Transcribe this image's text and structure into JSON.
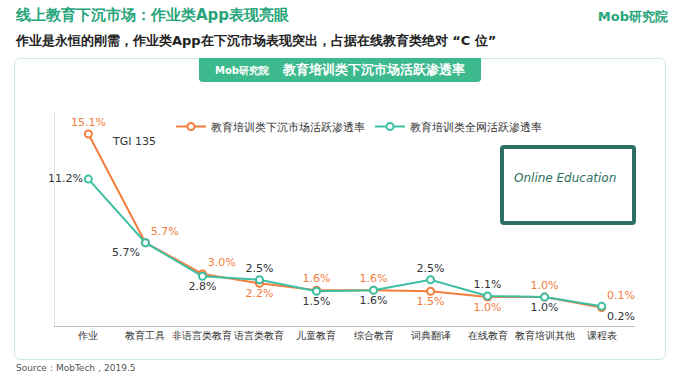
{
  "header": {
    "title": "线上教育下沉市场：作业类App表现亮眼",
    "subtitle": "作业是永恒的刚需，作业类App在下沉市场表现突出，占据在线教育类绝对 “C 位”",
    "logo": "Mob研究院"
  },
  "chart_data": {
    "type": "line",
    "title": "教育培训类下沉市场活跃渗透率",
    "title_logo": "Mob研究院",
    "categories": [
      "作业",
      "教育工具",
      "非语言类教育",
      "语言类教育",
      "儿童教育",
      "综合教育",
      "词典翻译",
      "在线教育",
      "教育培训其他",
      "课程表"
    ],
    "series": [
      {
        "name": "教育培训类下沉市场活跃渗透率",
        "color": "#f47c3c",
        "marker": "circle",
        "values": [
          15.1,
          5.7,
          3.0,
          2.2,
          1.6,
          1.6,
          1.5,
          1.0,
          1.0,
          0.1
        ],
        "value_labels": [
          "15.1%",
          "5.7%",
          "3.0%",
          "2.2%",
          "1.6%",
          "1.6%",
          "1.5%",
          "1.0%",
          "1.0%",
          "0.1%"
        ]
      },
      {
        "name": "教育培训类全网活跃渗透率",
        "color": "#3dbfa3",
        "marker": "circle",
        "values": [
          11.2,
          5.7,
          2.8,
          2.5,
          1.5,
          1.6,
          2.5,
          1.1,
          1.0,
          0.2
        ],
        "value_labels": [
          "11.2%",
          "5.7%",
          "2.8%",
          "2.5%",
          "1.5%",
          "1.6%",
          "2.5%",
          "1.1%",
          "1.0%",
          "0.2%"
        ]
      }
    ],
    "ylim": [
      -1.5,
      17
    ],
    "yticks": [],
    "tick_labels": "x",
    "grid": false,
    "legend": "top",
    "data_labels": true,
    "annotations": [
      {
        "text": "TGI 135",
        "category": "作业"
      }
    ]
  },
  "illustration_text": "Online Education",
  "source": "Source：MobTech，2019.5"
}
